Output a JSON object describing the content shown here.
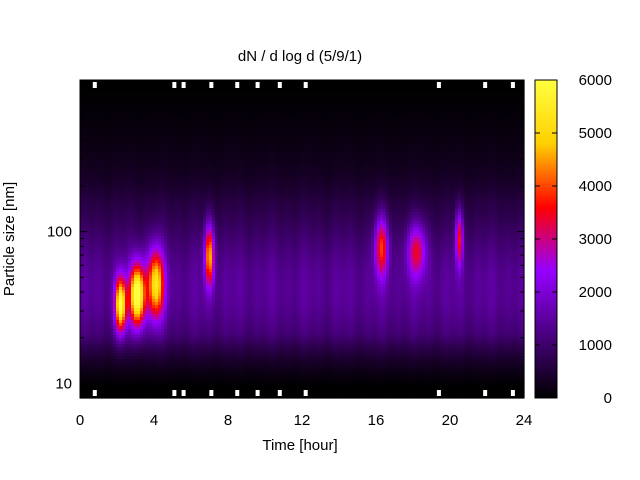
{
  "chart_data": {
    "type": "heatmap",
    "title": "dN / d log d (5/9/1)",
    "xlabel": "Time [hour]",
    "ylabel": "Particle size [nm]",
    "x_range": [
      0,
      24
    ],
    "x_ticks": [
      0,
      4,
      8,
      12,
      16,
      20,
      24
    ],
    "y_scale": "log",
    "y_range_nm": [
      8,
      1000
    ],
    "y_tick_labels": [
      {
        "value": 10,
        "label": "10"
      },
      {
        "value": 100,
        "label": "100"
      }
    ],
    "colorbar_range": [
      0,
      6000
    ],
    "colorbar_ticks": [
      0,
      1000,
      2000,
      3000,
      4000,
      5000,
      6000
    ],
    "colormap": [
      "#000000",
      "#4a0080",
      "#9600ff",
      "#ff0000",
      "#ffd000",
      "#ffff40"
    ],
    "grid": false,
    "background_level": 1200,
    "events": [
      {
        "time": 2.2,
        "size_nm": 33,
        "peak": 4700,
        "t_width": 0.3,
        "size_width_log": 0.18
      },
      {
        "time": 3.1,
        "size_nm": 38,
        "peak": 5300,
        "t_width": 0.4,
        "size_width_log": 0.2
      },
      {
        "time": 4.1,
        "size_nm": 45,
        "peak": 4000,
        "t_width": 0.45,
        "size_width_log": 0.23
      },
      {
        "time": 7.0,
        "size_nm": 70,
        "peak": 3500,
        "t_width": 0.25,
        "size_width_log": 0.2
      },
      {
        "time": 16.3,
        "size_nm": 80,
        "peak": 2700,
        "t_width": 0.35,
        "size_width_log": 0.2
      },
      {
        "time": 18.2,
        "size_nm": 75,
        "peak": 2200,
        "t_width": 0.5,
        "size_width_log": 0.18
      },
      {
        "time": 20.5,
        "size_nm": 90,
        "peak": 2600,
        "t_width": 0.2,
        "size_width_log": 0.18
      }
    ],
    "missing_data_marks": [
      0.8,
      5.1,
      5.6,
      7.1,
      8.5,
      9.6,
      10.8,
      12.2,
      19.4,
      21.9,
      23.4
    ]
  }
}
